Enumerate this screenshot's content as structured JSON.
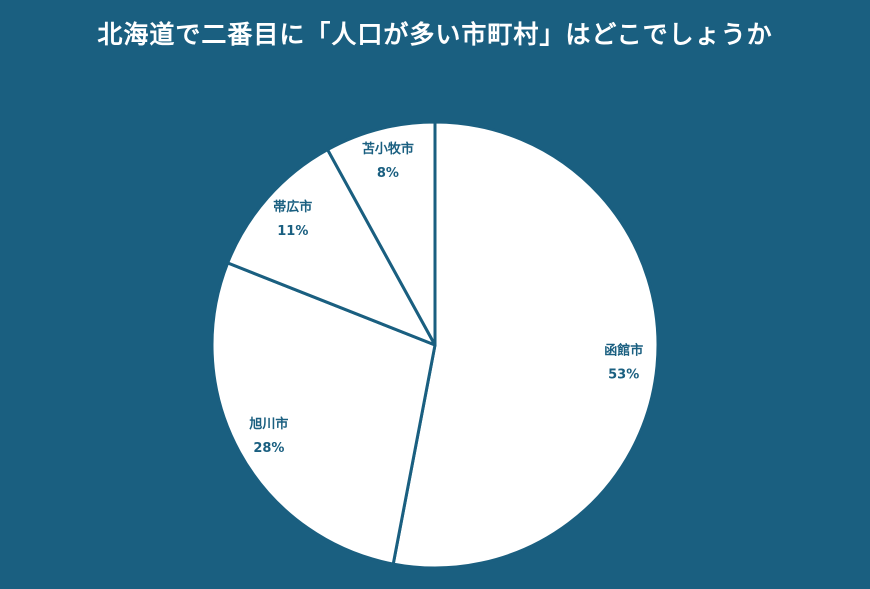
{
  "chart_data": {
    "type": "pie",
    "title": "北海道で二番目に「人口が多い市町村」はどこでしょうか",
    "categories": [
      "函館市",
      "旭川市",
      "帯広市",
      "苫小牧市"
    ],
    "values": [
      53,
      28,
      11,
      8
    ],
    "value_labels": [
      "53%",
      "28%",
      "11%",
      "8%"
    ],
    "colors": [
      "#ffffff",
      "#ffffff",
      "#ffffff",
      "#ffffff"
    ],
    "background": "#1a5f80"
  }
}
